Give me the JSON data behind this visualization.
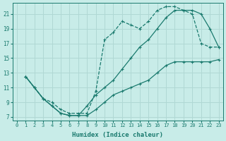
{
  "xlabel": "Humidex (Indice chaleur)",
  "bg_color": "#c8ece8",
  "grid_color": "#b0d8d4",
  "line_color": "#1a7a6e",
  "xlim": [
    -0.5,
    23.5
  ],
  "ylim": [
    6.5,
    22.5
  ],
  "yticks": [
    7,
    9,
    11,
    13,
    15,
    17,
    19,
    21
  ],
  "xticks": [
    0,
    1,
    2,
    3,
    4,
    5,
    6,
    7,
    8,
    9,
    10,
    11,
    12,
    13,
    14,
    15,
    16,
    17,
    18,
    19,
    20,
    21,
    22,
    23
  ],
  "line_upper_x": [
    1,
    2,
    3,
    4,
    5,
    6,
    7,
    8,
    9,
    10,
    11,
    12,
    13,
    14,
    15,
    16,
    17,
    18,
    19,
    20,
    21,
    22,
    23
  ],
  "line_upper_y": [
    12.5,
    11.0,
    9.5,
    9.0,
    8.0,
    7.5,
    7.5,
    7.5,
    10.5,
    17.5,
    18.5,
    20.0,
    19.5,
    19.0,
    20.0,
    21.5,
    22.0,
    22.0,
    21.5,
    21.0,
    17.0,
    16.5,
    16.5
  ],
  "line_mid_x": [
    1,
    2,
    3,
    4,
    5,
    6,
    7,
    8,
    9,
    10,
    11,
    12,
    13,
    14,
    15,
    16,
    17,
    18,
    19,
    20,
    21,
    22,
    23
  ],
  "line_mid_y": [
    12.5,
    11.0,
    9.5,
    8.5,
    7.5,
    7.2,
    7.2,
    8.5,
    10.0,
    11.0,
    12.0,
    13.5,
    15.0,
    16.5,
    17.5,
    19.0,
    20.5,
    21.5,
    21.5,
    21.5,
    21.0,
    19.0,
    16.5
  ],
  "line_low_x": [
    1,
    2,
    3,
    4,
    5,
    6,
    7,
    8,
    9,
    10,
    11,
    12,
    13,
    14,
    15,
    16,
    17,
    18,
    19,
    20,
    21,
    22,
    23
  ],
  "line_low_y": [
    12.5,
    11.0,
    9.5,
    8.5,
    7.5,
    7.2,
    7.2,
    7.2,
    8.0,
    9.0,
    10.0,
    10.5,
    11.0,
    11.5,
    12.0,
    13.0,
    14.0,
    14.5,
    14.5,
    14.5,
    14.5,
    14.5,
    14.8
  ]
}
